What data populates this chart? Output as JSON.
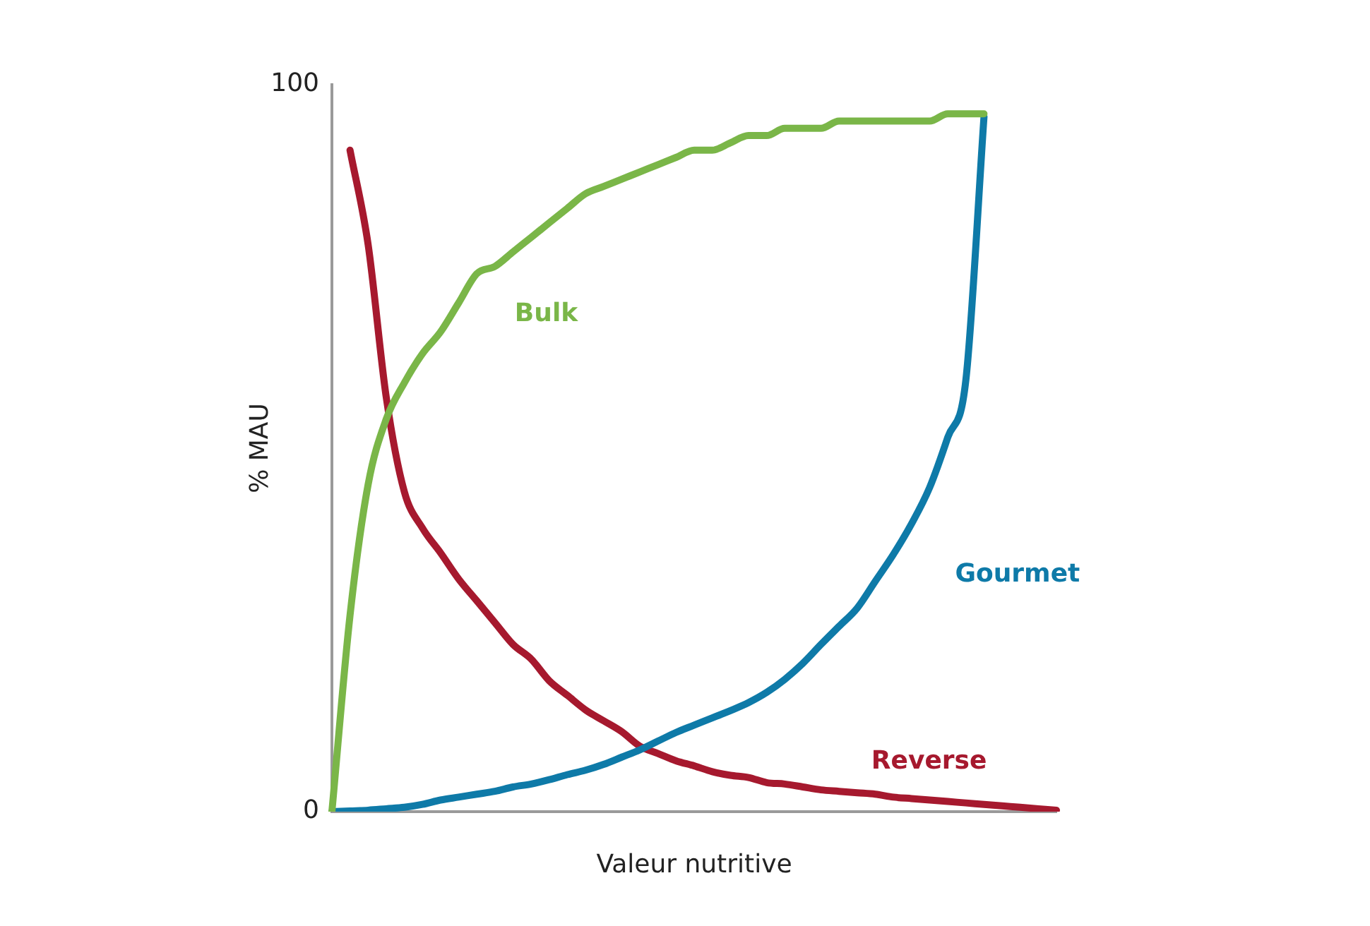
{
  "chart_data": {
    "type": "line",
    "xlabel": "Valeur nutritive",
    "ylabel": "% MAU",
    "categories": [
      null,
      null,
      null,
      null,
      null,
      null,
      null,
      null,
      null,
      null,
      null,
      null,
      null,
      null,
      null,
      null,
      null,
      null,
      null,
      null,
      null,
      null,
      null,
      null,
      null,
      null,
      null,
      null,
      null,
      null,
      null,
      null,
      null,
      null,
      null,
      null,
      null,
      null,
      null,
      null,
      null
    ],
    "series": [
      {
        "name": "Bulk",
        "color": "#7ab648",
        "values": [
          0,
          27,
          45,
          54,
          59,
          63,
          66,
          70,
          74,
          75,
          77,
          79,
          81,
          83,
          85,
          86,
          87,
          88,
          89,
          90,
          91,
          91,
          92,
          93,
          93,
          94,
          94,
          94,
          95,
          95,
          95,
          95,
          95,
          95,
          96,
          96,
          96,
          null,
          null,
          null,
          null
        ]
      },
      {
        "name": "Gourmet",
        "color": "#0e7aa8",
        "values": [
          0,
          0.1,
          0.2,
          0.4,
          0.6,
          1,
          1.6,
          2,
          2.4,
          2.8,
          3.4,
          3.8,
          4.4,
          5.1,
          5.7,
          6.5,
          7.5,
          8.5,
          9.7,
          10.9,
          11.9,
          12.9,
          13.9,
          15,
          16.4,
          18.2,
          20.4,
          23,
          25.5,
          28,
          31.7,
          35.4,
          39.6,
          44.6,
          51.5,
          59.4,
          95.6,
          null,
          null,
          null,
          null
        ]
      },
      {
        "name": "Reverse",
        "color": "#a6192e",
        "values": [
          null,
          91,
          78,
          57,
          44,
          39,
          35.6,
          32,
          29,
          26,
          23,
          21,
          18,
          16,
          14,
          12.5,
          11,
          9,
          8,
          7,
          6.3,
          5.5,
          5,
          4.7,
          4,
          3.8,
          3.4,
          3,
          2.8,
          2.6,
          2.4,
          2,
          1.8,
          1.6,
          1.4,
          1.2,
          1,
          0.8,
          0.6,
          0.4,
          0.2
        ]
      }
    ],
    "ylim": [
      0,
      100
    ],
    "yticks": [
      0,
      100
    ],
    "tick_labels": "y",
    "marker": "none",
    "line_style": "solid"
  }
}
